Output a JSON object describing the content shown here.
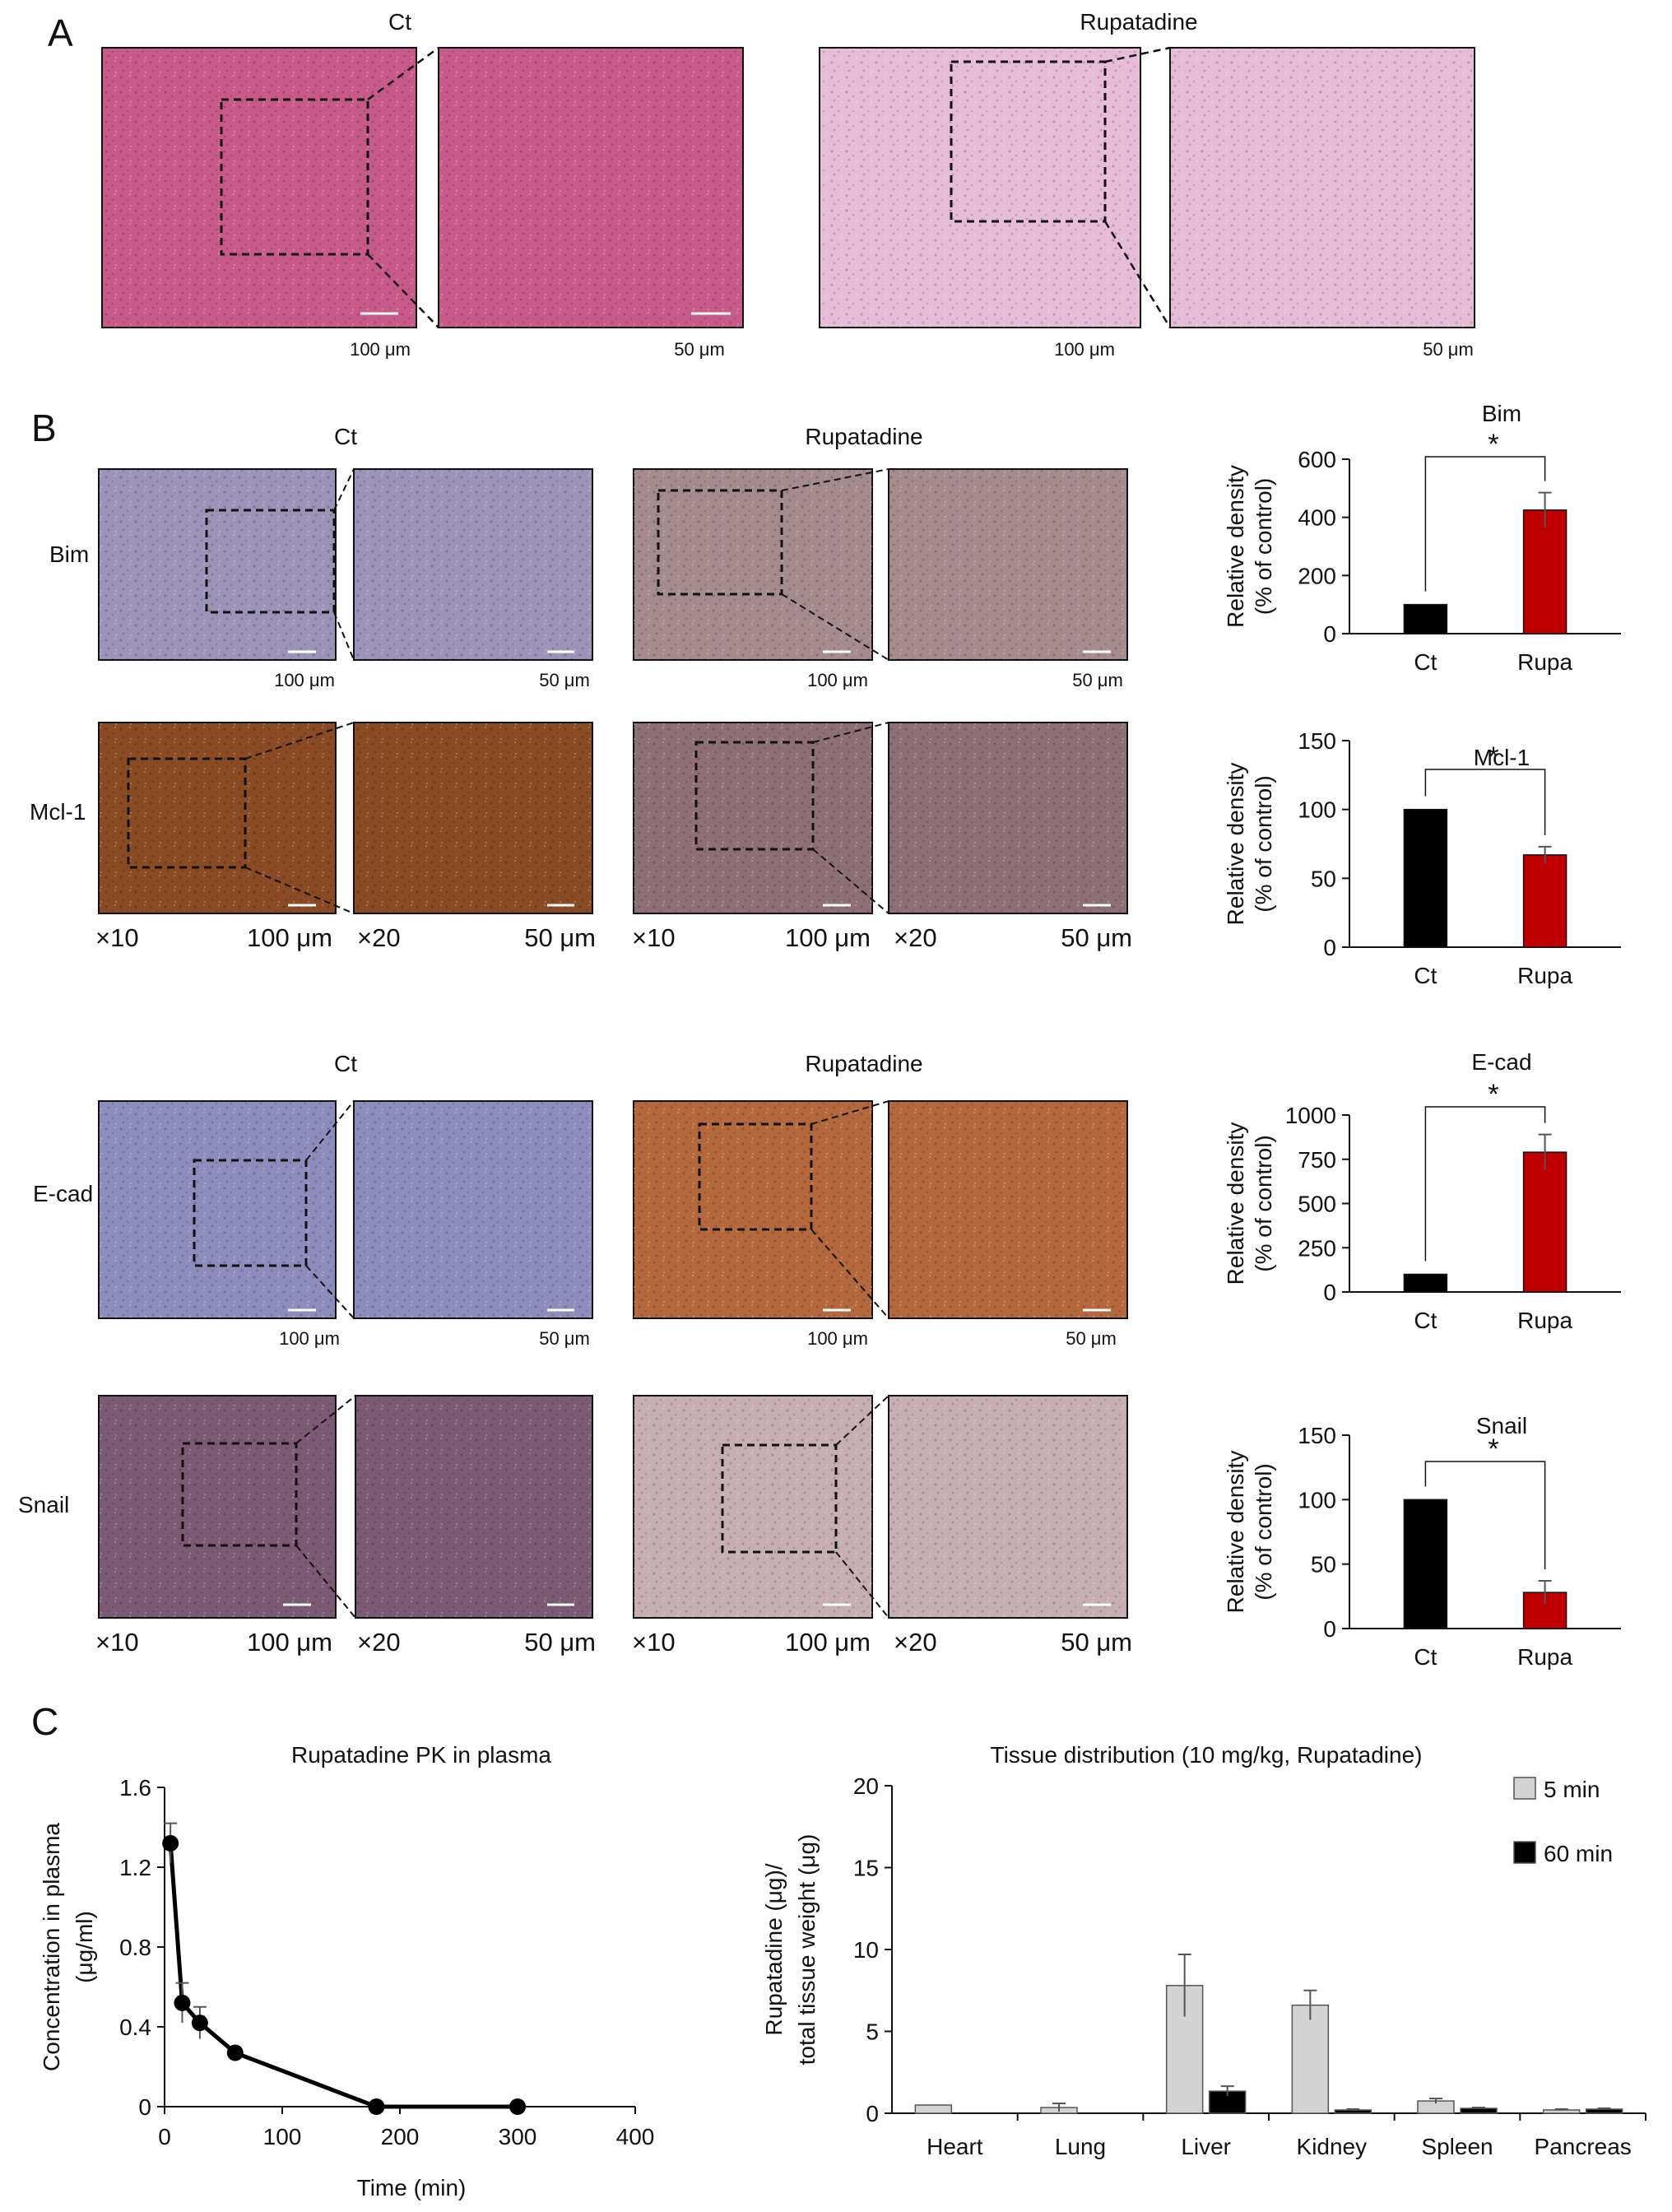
{
  "panels": {
    "A": "A",
    "B": "B",
    "C": "C"
  },
  "histology": {
    "ct": "Ct",
    "rupatadine": "Rupatadine",
    "um100": "100 μm",
    "um50": "50 μm",
    "um50b": "50 μm",
    "x10": "×10",
    "x20": "×20",
    "markers": [
      "Bim",
      "Mcl-1",
      "E-cad",
      "Snail"
    ],
    "stain_colors": {
      "he_ct": "#c85a8a",
      "he_rupa": "#e7bcd6",
      "bim_ct": "#9c93b8",
      "bim_rupa": "#a58a8e",
      "mcl1_ct": "#8a4a24",
      "mcl1_rupa": "#8f6f76",
      "ecad_ct": "#8d8cbc",
      "ecad_rupa": "#b5683d",
      "snail_ct": "#7d5a74",
      "snail_rupa": "#c7aeb2"
    }
  },
  "chart_data": [
    {
      "type": "bar",
      "title": "Bim",
      "categories": [
        "Ct",
        "Rupa"
      ],
      "values": [
        100,
        425
      ],
      "errors": [
        0,
        60
      ],
      "colors": [
        "#000000",
        "#c00000"
      ],
      "ylabel": "Relative density",
      "ylabel2": "(% of control)",
      "ylim": [
        0,
        600
      ],
      "yticks": [
        0,
        200,
        400,
        600
      ],
      "significance": "*"
    },
    {
      "type": "bar",
      "title": "Mcl-1",
      "categories": [
        "Ct",
        "Rupa"
      ],
      "values": [
        100,
        67
      ],
      "errors": [
        0,
        6
      ],
      "colors": [
        "#000000",
        "#c00000"
      ],
      "ylabel": "Relative density",
      "ylabel2": "(% of control)",
      "ylim": [
        0,
        150
      ],
      "yticks": [
        0,
        50,
        100,
        150
      ],
      "significance": "*"
    },
    {
      "type": "bar",
      "title": "E-cad",
      "categories": [
        "Ct",
        "Rupa"
      ],
      "values": [
        100,
        790
      ],
      "errors": [
        0,
        100
      ],
      "colors": [
        "#000000",
        "#c00000"
      ],
      "ylabel": "Relative density",
      "ylabel2": "(% of control)",
      "ylim": [
        0,
        1000
      ],
      "yticks": [
        0,
        250,
        500,
        750,
        1000
      ],
      "significance": "*"
    },
    {
      "type": "bar",
      "title": "Snail",
      "categories": [
        "Ct",
        "Rupa"
      ],
      "values": [
        100,
        28
      ],
      "errors": [
        0,
        9
      ],
      "colors": [
        "#000000",
        "#c00000"
      ],
      "ylabel": "Relative density",
      "ylabel2": "(% of control)",
      "ylim": [
        0,
        150
      ],
      "yticks": [
        0,
        50,
        100,
        150
      ],
      "significance": "*"
    },
    {
      "type": "line",
      "title": "Rupatadine PK in plasma",
      "xlabel": "Time (min)",
      "ylabel": "Concentration in plasma",
      "ylabel2": "(μg/ml)",
      "x": [
        5,
        15,
        30,
        60,
        180,
        300
      ],
      "y": [
        1.32,
        0.52,
        0.42,
        0.27,
        0.0,
        0.0
      ],
      "errors": [
        0.1,
        0.1,
        0.08,
        0.02,
        0,
        0
      ],
      "xlim": [
        0,
        400
      ],
      "ylim": [
        0,
        1.6
      ],
      "xticks": [
        0,
        100,
        200,
        300,
        400
      ],
      "yticks": [
        "0",
        "0.4",
        "0.8",
        "1.2",
        "1.6"
      ],
      "color": "#000000"
    },
    {
      "type": "bar",
      "title": "Tissue distribution (10 mg/kg, Rupatadine)",
      "categories": [
        "Heart",
        "Lung",
        "Liver",
        "Kidney",
        "Spleen",
        "Pancreas"
      ],
      "series": [
        {
          "name": "5 min",
          "values": [
            0.5,
            0.35,
            7.8,
            6.6,
            0.75,
            0.2
          ],
          "errors": [
            0,
            0.25,
            1.9,
            0.9,
            0.15,
            0.05
          ],
          "color": "#d3d3d3"
        },
        {
          "name": "60 min",
          "values": [
            0,
            0,
            1.35,
            0.2,
            0.3,
            0.25
          ],
          "errors": [
            0,
            0,
            0.3,
            0.05,
            0.05,
            0.05
          ],
          "color": "#000000"
        }
      ],
      "ylabel": "Rupatadine (μg)/",
      "ylabel2": "total tissue weight (μg)",
      "ylim": [
        0,
        20
      ],
      "yticks": [
        0,
        5,
        10,
        15,
        20
      ],
      "legend": "top-right"
    }
  ]
}
